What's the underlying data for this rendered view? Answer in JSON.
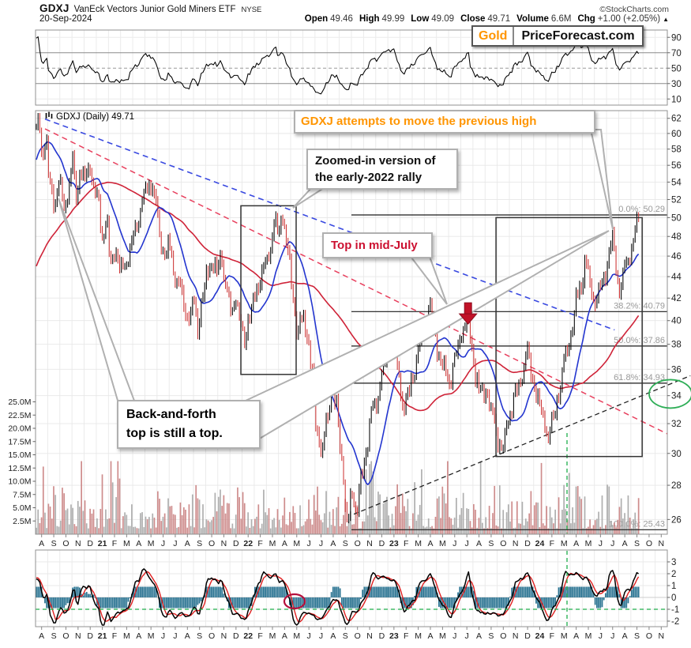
{
  "header": {
    "symbol": "GDXJ",
    "name": "VanEck Vectors Junior Gold Miners ETF",
    "exchange": "NYSE",
    "copyright": "©StockCharts.com",
    "date": "20-Sep-2024",
    "quote": {
      "open_label": "Open",
      "open": "49.46",
      "high_label": "High",
      "high": "49.99",
      "low_label": "Low",
      "low": "49.09",
      "close_label": "Close",
      "close": "49.71",
      "volume_label": "Volume",
      "volume": "6.6M",
      "chg_label": "Chg",
      "chg": "+1.00 (+2.05%)",
      "chg_dir": "▲"
    }
  },
  "badge": {
    "gold": "Gold",
    "site": "PriceForecast.com"
  },
  "main_label": "GDXJ (Daily) 49.71",
  "annotations": {
    "attempt": "GDXJ attempts to move the previous high",
    "zoomed_1": "Zoomed-in version of",
    "zoomed_2": "the early-2022 rally",
    "top_july": "Top in mid-July",
    "backforth_1": "Back-and-forth",
    "backforth_2": "top is still a top."
  },
  "chart_data": {
    "type": "line",
    "subtype": "daily OHLC bars with RSI, volume and oscillator panels",
    "title": "GDXJ (Daily) 49.71",
    "x_start": "Aug-2020",
    "x_end": "Nov-2024",
    "x_months": [
      "A",
      "S",
      "O",
      "N",
      "D",
      "21",
      "F",
      "M",
      "A",
      "M",
      "J",
      "J",
      "A",
      "S",
      "O",
      "N",
      "D",
      "22",
      "F",
      "M",
      "A",
      "M",
      "J",
      "J",
      "A",
      "S",
      "O",
      "N",
      "D",
      "23",
      "F",
      "M",
      "A",
      "M",
      "J",
      "J",
      "A",
      "S",
      "O",
      "N",
      "D",
      "24",
      "F",
      "M",
      "A",
      "M",
      "J",
      "J",
      "A",
      "S",
      "O",
      "N"
    ],
    "rsi_panel": {
      "yticks": [
        90,
        70,
        50,
        30,
        10
      ],
      "overbought": 70,
      "oversold": 30,
      "midline": 50
    },
    "price_panel": {
      "scale": "log",
      "yticks": [
        62,
        60,
        58,
        56,
        54,
        52,
        50,
        48,
        46,
        44,
        42,
        40,
        38,
        36,
        34,
        32,
        30,
        28,
        26
      ],
      "last_close": 49.71,
      "fib_retracement": [
        {
          "pct": "0.0%",
          "value": 50.29
        },
        {
          "pct": "38.2%",
          "value": 40.79
        },
        {
          "pct": "50.0%",
          "value": 37.86
        },
        {
          "pct": "61.8%",
          "value": 34.93
        },
        {
          "pct": "100.0%",
          "value": 25.43
        }
      ],
      "price_path_monthly_units": "months since Aug-2020",
      "price_path_monthly": [
        [
          0,
          60.5
        ],
        [
          0.15,
          62.3
        ],
        [
          0.45,
          57.5
        ],
        [
          0.8,
          59
        ],
        [
          1.1,
          53.5
        ],
        [
          1.5,
          51.8
        ],
        [
          1.9,
          54
        ],
        [
          2.3,
          51.2
        ],
        [
          2.7,
          53.5
        ],
        [
          3.0,
          56.8
        ],
        [
          3.25,
          52.5
        ],
        [
          3.6,
          55.5
        ],
        [
          4.0,
          54.2
        ],
        [
          4.4,
          55.8
        ],
        [
          4.8,
          52.5
        ],
        [
          5.1,
          51.5
        ],
        [
          5.45,
          48.2
        ],
        [
          5.8,
          50
        ],
        [
          6.1,
          45.2
        ],
        [
          6.5,
          46.8
        ],
        [
          6.9,
          44.3
        ],
        [
          7.3,
          45.5
        ],
        [
          7.7,
          46.5
        ],
        [
          8.1,
          48.5
        ],
        [
          8.5,
          50.5
        ],
        [
          8.8,
          52.2
        ],
        [
          9.2,
          53.2
        ],
        [
          9.5,
          54.2
        ],
        [
          9.8,
          51.5
        ],
        [
          10.2,
          47.5
        ],
        [
          10.6,
          46
        ],
        [
          11,
          47
        ],
        [
          11.4,
          44
        ],
        [
          11.8,
          43
        ],
        [
          12.2,
          41
        ],
        [
          12.6,
          40.2
        ],
        [
          13,
          41.8
        ],
        [
          13.3,
          39.6
        ],
        [
          13.7,
          42
        ],
        [
          14.1,
          44.5
        ],
        [
          14.5,
          45.2
        ],
        [
          14.9,
          44
        ],
        [
          15.2,
          46.4
        ],
        [
          15.6,
          43
        ],
        [
          16,
          41
        ],
        [
          16.4,
          42
        ],
        [
          16.8,
          39.5
        ],
        [
          17.1,
          38.2
        ],
        [
          17.5,
          40.2
        ],
        [
          17.9,
          41.5
        ],
        [
          18.3,
          43.5
        ],
        [
          18.8,
          45
        ],
        [
          19.2,
          46.5
        ],
        [
          19.6,
          50
        ],
        [
          19.9,
          48.5
        ],
        [
          20.3,
          50.29
        ],
        [
          20.7,
          46.5
        ],
        [
          21.1,
          42.5
        ],
        [
          21.5,
          38.8
        ],
        [
          21.9,
          40.2
        ],
        [
          22.3,
          39
        ],
        [
          22.7,
          35.5
        ],
        [
          23.1,
          31.5
        ],
        [
          23.5,
          30
        ],
        [
          23.9,
          32
        ],
        [
          24.3,
          34.5
        ],
        [
          24.7,
          33
        ],
        [
          25.1,
          30
        ],
        [
          25.6,
          25.6
        ],
        [
          26,
          27.5
        ],
        [
          26.4,
          26.5
        ],
        [
          26.8,
          28.5
        ],
        [
          27.2,
          30.5
        ],
        [
          27.6,
          32.8
        ],
        [
          28,
          33.5
        ],
        [
          28.5,
          35.8
        ],
        [
          29,
          37.5
        ],
        [
          29.4,
          38.3
        ],
        [
          29.8,
          35.5
        ],
        [
          30.2,
          33.3
        ],
        [
          30.6,
          33.8
        ],
        [
          31,
          35.5
        ],
        [
          31.5,
          37.8
        ],
        [
          32,
          39.2
        ],
        [
          32.3,
          41.5
        ],
        [
          32.7,
          39.5
        ],
        [
          33.1,
          37.5
        ],
        [
          33.5,
          36
        ],
        [
          34,
          35
        ],
        [
          34.5,
          36.8
        ],
        [
          35,
          38.8
        ],
        [
          35.5,
          41
        ],
        [
          35.8,
          38
        ],
        [
          36.2,
          35.5
        ],
        [
          36.6,
          34
        ],
        [
          37,
          34.5
        ],
        [
          37.5,
          32.8
        ],
        [
          38,
          31
        ],
        [
          38.4,
          30.3
        ],
        [
          38.9,
          32.5
        ],
        [
          39.4,
          34
        ],
        [
          39.9,
          35.2
        ],
        [
          40.4,
          37.4
        ],
        [
          40.8,
          35.5
        ],
        [
          41.2,
          34
        ],
        [
          41.7,
          32.5
        ],
        [
          42.1,
          31.2
        ],
        [
          42.6,
          32.5
        ],
        [
          43.1,
          34.8
        ],
        [
          43.6,
          37
        ],
        [
          44.1,
          39.5
        ],
        [
          44.5,
          42
        ],
        [
          44.9,
          43.5
        ],
        [
          45.2,
          45.8
        ],
        [
          45.6,
          43
        ],
        [
          46,
          41.8
        ],
        [
          46.4,
          42.5
        ],
        [
          46.8,
          44
        ],
        [
          47.2,
          46.5
        ],
        [
          47.45,
          47.7
        ],
        [
          47.8,
          44
        ],
        [
          48.1,
          43
        ],
        [
          48.5,
          45
        ],
        [
          48.9,
          46.5
        ],
        [
          49.2,
          48
        ],
        [
          49.5,
          49.8
        ],
        [
          49.65,
          49.71
        ]
      ],
      "volume_yticks": [
        "25.0M",
        "22.5M",
        "20.0M",
        "17.5M",
        "15.0M",
        "12.5M",
        "10.0M",
        "7.5M",
        "5.0M",
        "2.5M"
      ],
      "trendlines": {
        "blue_dashed_resistance": [
          [
            0.78,
            61.9
          ],
          [
            47.66,
            39.2
          ]
        ],
        "red_dashed_resistance": [
          [
            0.78,
            60.6
          ],
          [
            52,
            31.3
          ]
        ],
        "black_dashed_support": [
          [
            26.2,
            26.3
          ],
          [
            53.9,
            35.5
          ]
        ]
      },
      "boxes": [
        {
          "name": "early-2022-rally",
          "t": [
            16.9,
            21.45
          ],
          "p": [
            35.6,
            51.3
          ]
        },
        {
          "name": "2024-rally",
          "t": [
            37.9,
            49.93
          ],
          "p": [
            29.8,
            50.0
          ]
        }
      ],
      "green_ellipse_target_price": 34.6,
      "arrow_top_mid_july": {
        "t": 35.6,
        "p_tip": 39.7
      },
      "green_vline_month": "Apr-2024"
    },
    "osc_panel": {
      "yticks": [
        3,
        2,
        1,
        0,
        -1,
        -2
      ],
      "green_dashed_level": -1
    },
    "colors": {
      "bar_up": "#000000",
      "bar_down": "#cc3333",
      "ma_fast": "#2335cf",
      "ma_slow": "#cf2338",
      "vol_up": "#a6a6a6",
      "vol_down": "#c98080",
      "teal_area": "#2b7492",
      "green": "#1ead4b",
      "fib_label": "#999999",
      "accent_orange": "#ff9500",
      "accent_red": "#cc1030"
    }
  }
}
